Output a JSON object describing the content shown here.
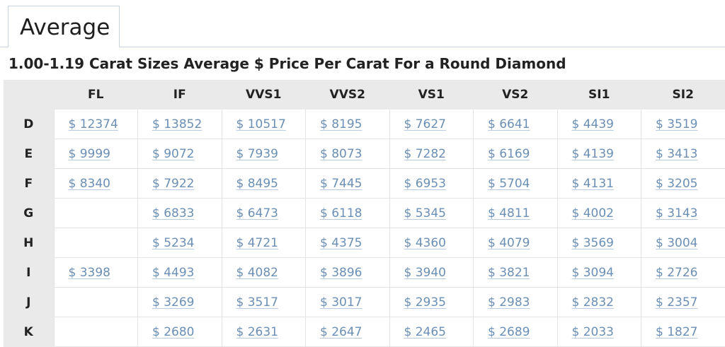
{
  "tab": {
    "label": "Average"
  },
  "title": "1.00-1.19 Carat Sizes Average $ Price Per Carat For a Round Diamond",
  "columns": [
    "FL",
    "IF",
    "VVS1",
    "VVS2",
    "VS1",
    "VS2",
    "SI1",
    "SI2"
  ],
  "rows": [
    {
      "color": "D",
      "prices": [
        "$ 12374",
        "$ 13852",
        "$ 10517",
        "$ 8195",
        "$ 7627",
        "$ 6641",
        "$ 4439",
        "$ 3519"
      ]
    },
    {
      "color": "E",
      "prices": [
        "$ 9999",
        "$ 9072",
        "$ 7939",
        "$ 8073",
        "$ 7282",
        "$ 6169",
        "$ 4139",
        "$ 3413"
      ]
    },
    {
      "color": "F",
      "prices": [
        "$ 8340",
        "$ 7922",
        "$ 8495",
        "$ 7445",
        "$ 6953",
        "$ 5704",
        "$ 4131",
        "$ 3205"
      ]
    },
    {
      "color": "G",
      "prices": [
        "",
        "$ 6833",
        "$ 6473",
        "$ 6118",
        "$ 5345",
        "$ 4811",
        "$ 4002",
        "$ 3143"
      ]
    },
    {
      "color": "H",
      "prices": [
        "",
        "$ 5234",
        "$ 4721",
        "$ 4375",
        "$ 4360",
        "$ 4079",
        "$ 3569",
        "$ 3004"
      ]
    },
    {
      "color": "I",
      "prices": [
        "$ 3398",
        "$ 4493",
        "$ 4082",
        "$ 3896",
        "$ 3940",
        "$ 3821",
        "$ 3094",
        "$ 2726"
      ]
    },
    {
      "color": "J",
      "prices": [
        "",
        "$ 3269",
        "$ 3517",
        "$ 3017",
        "$ 2935",
        "$ 2983",
        "$ 2832",
        "$ 2357"
      ]
    },
    {
      "color": "K",
      "prices": [
        "",
        "$ 2680",
        "$ 2631",
        "$ 2647",
        "$ 2465",
        "$ 2689",
        "$ 2033",
        "$ 1827"
      ]
    }
  ],
  "colors": {
    "link": "#6b8fb5",
    "header_bg": "#eaeaea",
    "tab_border": "#c8d3df"
  }
}
